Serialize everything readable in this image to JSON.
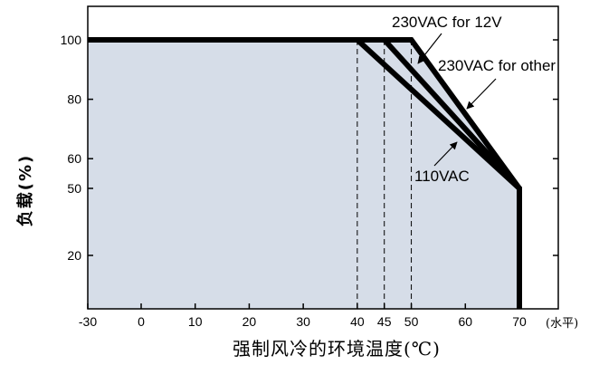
{
  "chart_data": {
    "type": "line",
    "x_ticks": [
      -30,
      0,
      10,
      20,
      30,
      40,
      45,
      50,
      60,
      70
    ],
    "y_ticks": [
      20,
      50,
      60,
      80,
      100
    ],
    "xlim": [
      -30,
      77
    ],
    "ylim": [
      0,
      112
    ],
    "xlabel": "强制风冷的环境温度(℃)",
    "ylabel": "负载(%)",
    "x_unit_label": "(水平)",
    "grid": false,
    "shaded_area": true,
    "colors": {
      "fill": "#d6dde8",
      "line": "#000000"
    },
    "series": [
      {
        "name": "230VAC for 12V",
        "x": [
          -30,
          50,
          70,
          70
        ],
        "y": [
          100,
          100,
          50,
          0
        ]
      },
      {
        "name": "230VAC for other",
        "x": [
          -30,
          45,
          70,
          70
        ],
        "y": [
          100,
          100,
          50,
          0
        ]
      },
      {
        "name": "110VAC",
        "x": [
          -30,
          40,
          70,
          70
        ],
        "y": [
          100,
          100,
          50,
          0
        ]
      }
    ],
    "dashed_markers_x": [
      40,
      45,
      50
    ]
  }
}
